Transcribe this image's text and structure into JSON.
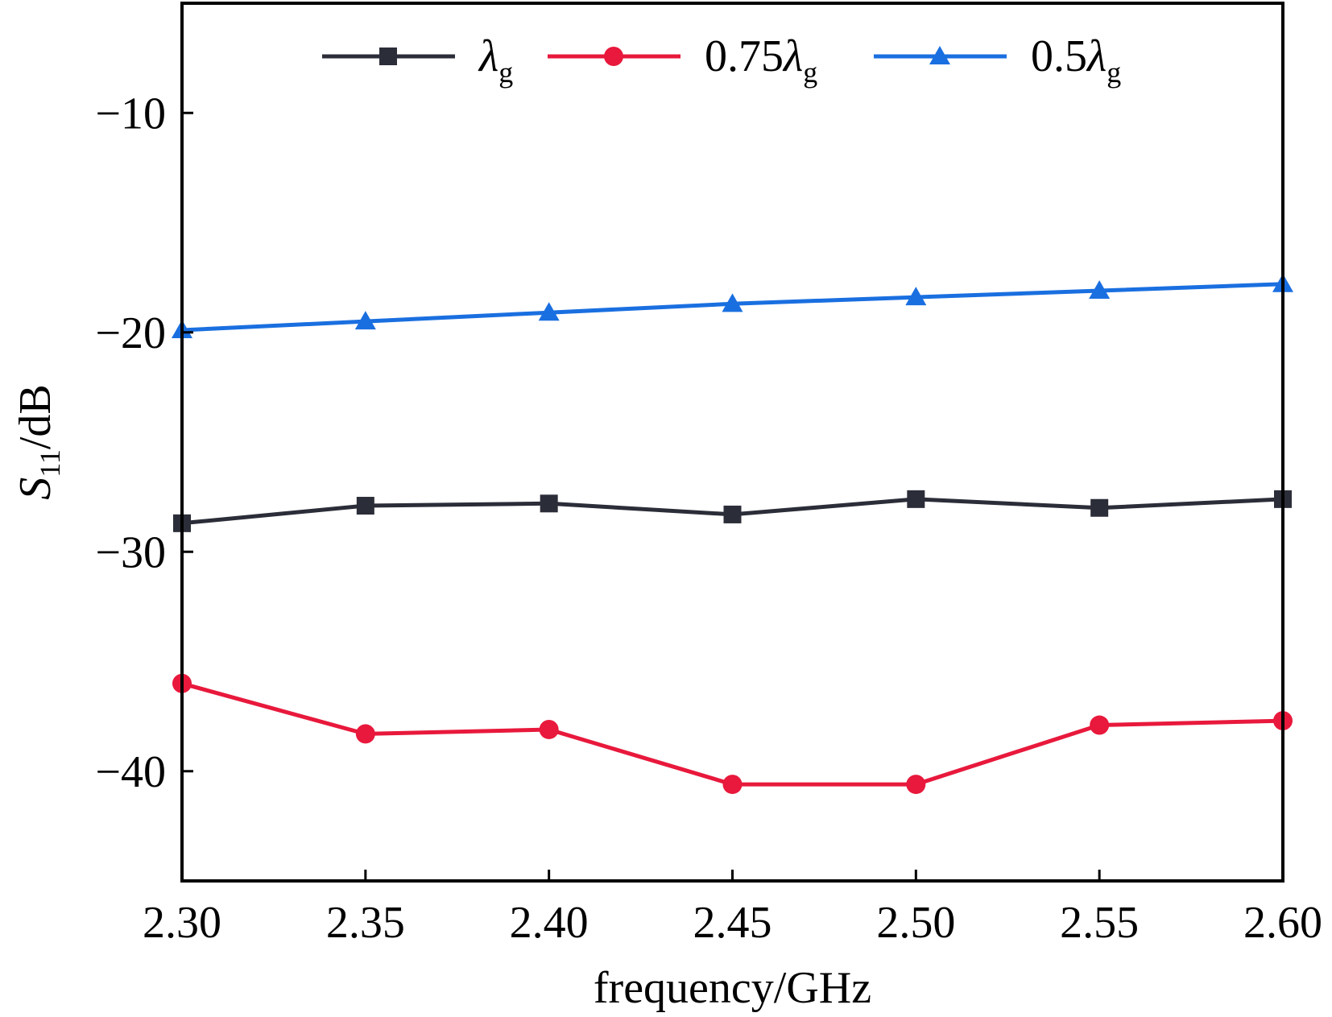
{
  "chart_data": {
    "type": "line",
    "xlabel": "frequency/GHz",
    "ylabel": {
      "main": "S",
      "sub": "11",
      "rest": "/dB"
    },
    "x": [
      2.3,
      2.35,
      2.4,
      2.45,
      2.5,
      2.55,
      2.6
    ],
    "x_tick_labels": [
      "2.30",
      "2.35",
      "2.40",
      "2.45",
      "2.50",
      "2.55",
      "2.60"
    ],
    "xlim": [
      2.3,
      2.6
    ],
    "y_ticks": [
      -10,
      -20,
      -30,
      -40
    ],
    "y_tick_labels": [
      "−10",
      "−20",
      "−30",
      "−40"
    ],
    "ylim": [
      -45,
      -5
    ],
    "grid": false,
    "legend_position": "top",
    "series": [
      {
        "name": "λg",
        "label_main": "λ",
        "label_prefix": "",
        "label_sub": "g",
        "color": "#2b2d38",
        "marker": "square",
        "values": [
          -28.7,
          -27.9,
          -27.8,
          -28.3,
          -27.6,
          -28.0,
          -27.6
        ]
      },
      {
        "name": "0.75λg",
        "label_main": "λ",
        "label_prefix": "0.75",
        "label_sub": "g",
        "color": "#e8193c",
        "marker": "circle",
        "values": [
          -36.0,
          -38.3,
          -38.1,
          -40.6,
          -40.6,
          -37.9,
          -37.7
        ]
      },
      {
        "name": "0.5λg",
        "label_main": "λ",
        "label_prefix": "0.5",
        "label_sub": "g",
        "color": "#1a6fe0",
        "marker": "triangle",
        "values": [
          -19.9,
          -19.5,
          -19.1,
          -18.7,
          -18.4,
          -18.1,
          -17.8
        ]
      }
    ]
  }
}
